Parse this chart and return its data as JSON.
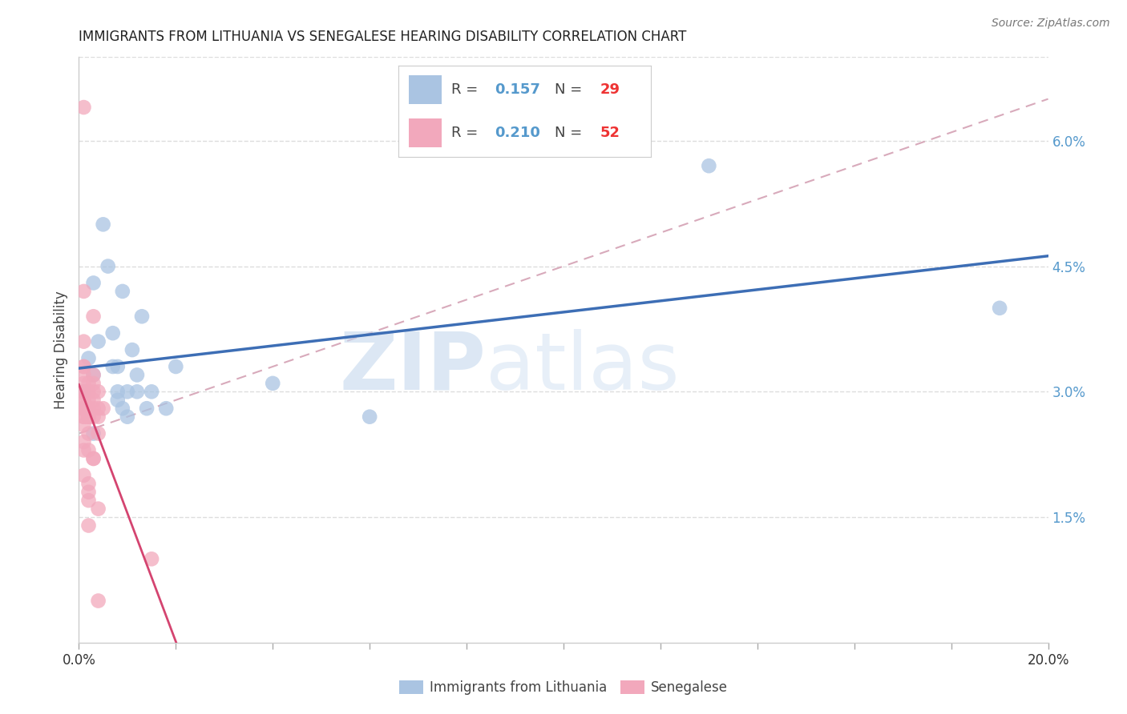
{
  "title": "IMMIGRANTS FROM LITHUANIA VS SENEGALESE HEARING DISABILITY CORRELATION CHART",
  "source": "Source: ZipAtlas.com",
  "ylabel": "Hearing Disability",
  "xlim": [
    0.0,
    0.2
  ],
  "ylim": [
    0.0,
    0.07
  ],
  "xticks": [
    0.0,
    0.02,
    0.04,
    0.06,
    0.08,
    0.1,
    0.12,
    0.14,
    0.16,
    0.18,
    0.2
  ],
  "yticks_right": [
    0.015,
    0.03,
    0.045,
    0.06
  ],
  "ytick_labels_right": [
    "1.5%",
    "3.0%",
    "4.5%",
    "6.0%"
  ],
  "legend_r1": "0.157",
  "legend_n1": "29",
  "legend_r2": "0.210",
  "legend_n2": "52",
  "background_color": "#ffffff",
  "grid_color": "#dddddd",
  "blue_color": "#aac4e2",
  "pink_color": "#f2a8bc",
  "blue_line_color": "#3d6eb5",
  "pink_line_color": "#d44470",
  "dashed_line_color": "#d8aabb",
  "title_fontsize": 12,
  "source_fontsize": 10,
  "lithuania_x": [
    0.001,
    0.002,
    0.003,
    0.003,
    0.004,
    0.005,
    0.006,
    0.007,
    0.007,
    0.008,
    0.008,
    0.008,
    0.009,
    0.009,
    0.01,
    0.01,
    0.011,
    0.012,
    0.012,
    0.013,
    0.014,
    0.015,
    0.018,
    0.02,
    0.04,
    0.06,
    0.13,
    0.19,
    0.003
  ],
  "lithuania_y": [
    0.03,
    0.034,
    0.043,
    0.025,
    0.036,
    0.05,
    0.045,
    0.033,
    0.037,
    0.033,
    0.03,
    0.029,
    0.042,
    0.028,
    0.03,
    0.027,
    0.035,
    0.03,
    0.032,
    0.039,
    0.028,
    0.03,
    0.028,
    0.033,
    0.031,
    0.027,
    0.057,
    0.04,
    0.032
  ],
  "senegalese_x": [
    0.001,
    0.001,
    0.001,
    0.001,
    0.001,
    0.001,
    0.001,
    0.001,
    0.001,
    0.001,
    0.001,
    0.001,
    0.001,
    0.001,
    0.002,
    0.002,
    0.002,
    0.002,
    0.002,
    0.002,
    0.002,
    0.002,
    0.002,
    0.002,
    0.003,
    0.003,
    0.003,
    0.003,
    0.003,
    0.003,
    0.003,
    0.004,
    0.004,
    0.004,
    0.004,
    0.004,
    0.005,
    0.001,
    0.001,
    0.002,
    0.001,
    0.003,
    0.001,
    0.002,
    0.003,
    0.002,
    0.015,
    0.001,
    0.004,
    0.001,
    0.001,
    0.002
  ],
  "senegalese_y": [
    0.064,
    0.036,
    0.042,
    0.032,
    0.033,
    0.03,
    0.031,
    0.028,
    0.027,
    0.027,
    0.026,
    0.024,
    0.023,
    0.02,
    0.029,
    0.028,
    0.027,
    0.025,
    0.023,
    0.019,
    0.018,
    0.017,
    0.03,
    0.031,
    0.032,
    0.029,
    0.028,
    0.027,
    0.022,
    0.022,
    0.039,
    0.03,
    0.028,
    0.027,
    0.025,
    0.016,
    0.028,
    0.033,
    0.029,
    0.027,
    0.03,
    0.03,
    0.028,
    0.028,
    0.031,
    0.014,
    0.01,
    0.029,
    0.005,
    0.028,
    0.028,
    0.027
  ]
}
